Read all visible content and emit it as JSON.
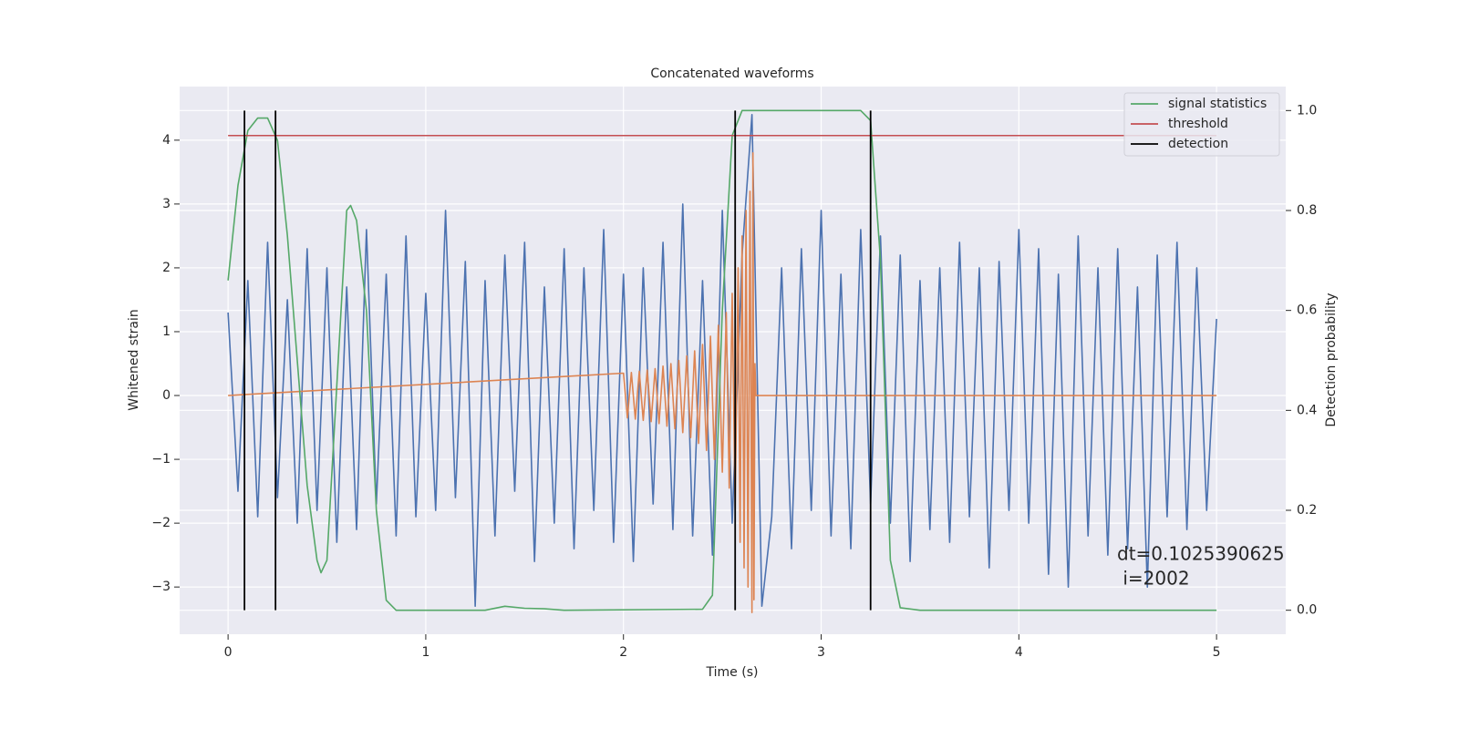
{
  "chart_data": {
    "type": "line",
    "title": "Concatenated waveforms",
    "xlabel": "Time (s)",
    "ylabel": "Whitened strain",
    "y2label": "Detection probability",
    "xlim": [
      -0.245,
      5.35
    ],
    "ylim": [
      -3.74,
      4.84
    ],
    "y2lim": [
      -0.048,
      1.048
    ],
    "xticks": [
      0,
      1,
      2,
      3,
      4,
      5
    ],
    "yticks": [
      {
        "value": -3,
        "label": "−3"
      },
      {
        "value": -2,
        "label": "−2"
      },
      {
        "value": -1,
        "label": "−1"
      },
      0,
      1,
      2,
      3,
      4
    ],
    "y2ticks": [
      {
        "value": 0,
        "label": "0.0"
      },
      {
        "value": 0.2,
        "label": "0.2"
      },
      {
        "value": 0.4,
        "label": "0.4"
      },
      {
        "value": 0.6,
        "label": "0.6"
      },
      {
        "value": 0.8,
        "label": "0.8"
      },
      {
        "value": 1,
        "label": "1.0"
      }
    ],
    "grid": true,
    "legend": "upper right",
    "annotation": [
      "dt=0.1025390625",
      " i=2002"
    ],
    "series": [
      {
        "color": "#4c72b0",
        "x": [
          0,
          0.05,
          0.1,
          0.15,
          0.2,
          0.25,
          0.3,
          0.35,
          0.4,
          0.45,
          0.5,
          0.55,
          0.6,
          0.65,
          0.7,
          0.75,
          0.8,
          0.85,
          0.9,
          0.95,
          1,
          1.05,
          1.1,
          1.15,
          1.2,
          1.25,
          1.3,
          1.35,
          1.4,
          1.45,
          1.5,
          1.55,
          1.6,
          1.65,
          1.7,
          1.75,
          1.8,
          1.85,
          1.9,
          1.95,
          2,
          2.05,
          2.1,
          2.15,
          2.2,
          2.25,
          2.3,
          2.35,
          2.4,
          2.45,
          2.5,
          2.55,
          2.6,
          2.65,
          2.7,
          2.75,
          2.8,
          2.85,
          2.9,
          2.95,
          3,
          3.05,
          3.1,
          3.15,
          3.2,
          3.25,
          3.3,
          3.35,
          3.4,
          3.45,
          3.5,
          3.55,
          3.6,
          3.65,
          3.7,
          3.75,
          3.8,
          3.85,
          3.9,
          3.95,
          4,
          4.05,
          4.1,
          4.15,
          4.2,
          4.25,
          4.3,
          4.35,
          4.4,
          4.45,
          4.5,
          4.55,
          4.6,
          4.65,
          4.7,
          4.75,
          4.8,
          4.85,
          4.9,
          4.95,
          5
        ],
        "values": [
          1.3,
          -1.5,
          1.8,
          -1.9,
          2.4,
          -1.6,
          1.5,
          -2.0,
          2.3,
          -1.8,
          2.0,
          -2.3,
          1.7,
          -2.1,
          2.6,
          -1.7,
          1.9,
          -2.2,
          2.5,
          -1.9,
          1.6,
          -1.8,
          2.9,
          -1.6,
          2.1,
          -3.3,
          1.8,
          -2.2,
          2.2,
          -1.5,
          2.4,
          -2.6,
          1.7,
          -2.0,
          2.3,
          -2.4,
          2.0,
          -1.8,
          2.6,
          -2.3,
          1.9,
          -2.6,
          2.0,
          -1.7,
          2.4,
          -2.1,
          3.0,
          -2.2,
          1.8,
          -2.5,
          2.9,
          -2.0,
          2.2,
          4.4,
          -3.3,
          -1.9,
          2.0,
          -2.4,
          2.3,
          -1.8,
          2.9,
          -2.2,
          1.9,
          -2.4,
          2.6,
          -1.7,
          2.5,
          -2.0,
          2.2,
          -2.6,
          1.8,
          -2.1,
          2.0,
          -2.3,
          2.4,
          -1.9,
          2.0,
          -2.7,
          2.1,
          -1.8,
          2.6,
          -2.0,
          2.3,
          -2.8,
          1.9,
          -3.0,
          2.5,
          -2.2,
          2.0,
          -2.5,
          2.3,
          -2.4,
          1.7,
          -3.0,
          2.2,
          -1.9,
          2.4,
          -2.1,
          2.0,
          -1.8,
          1.2
        ]
      },
      {
        "color": "#dd8452",
        "x": [
          0,
          2.0,
          2.02,
          2.04,
          2.06,
          2.08,
          2.1,
          2.12,
          2.14,
          2.16,
          2.18,
          2.2,
          2.22,
          2.24,
          2.26,
          2.28,
          2.3,
          2.32,
          2.34,
          2.36,
          2.38,
          2.4,
          2.42,
          2.44,
          2.46,
          2.48,
          2.5,
          2.52,
          2.535,
          2.55,
          2.565,
          2.58,
          2.59,
          2.6,
          2.61,
          2.62,
          2.63,
          2.64,
          2.65,
          2.655,
          2.66,
          2.665,
          2.67,
          5.0
        ],
        "values": [
          0,
          0.35,
          -0.35,
          0.36,
          -0.37,
          0.38,
          -0.39,
          0.4,
          -0.41,
          0.42,
          -0.44,
          0.46,
          -0.48,
          0.5,
          -0.52,
          0.55,
          -0.58,
          0.62,
          -0.66,
          0.7,
          -0.75,
          0.8,
          -0.86,
          0.93,
          -1.0,
          1.1,
          -1.2,
          1.3,
          -1.45,
          1.6,
          -1.8,
          2.0,
          -2.3,
          2.5,
          -2.7,
          2.9,
          -3.0,
          3.2,
          -3.4,
          3.8,
          -3.2,
          0.5,
          0,
          0
        ]
      },
      {
        "name": "signal statistics",
        "color": "#55a868",
        "axis": "y2",
        "x": [
          0,
          0.05,
          0.1,
          0.15,
          0.2,
          0.25,
          0.3,
          0.35,
          0.4,
          0.45,
          0.47,
          0.5,
          0.55,
          0.6,
          0.62,
          0.65,
          0.7,
          0.75,
          0.8,
          0.85,
          1.0,
          1.3,
          1.4,
          1.5,
          1.6,
          1.7,
          2.4,
          2.45,
          2.5,
          2.55,
          2.6,
          3.2,
          3.25,
          3.3,
          3.35,
          3.4,
          3.5,
          5.0
        ],
        "values": [
          0.66,
          0.85,
          0.96,
          0.985,
          0.985,
          0.94,
          0.75,
          0.5,
          0.25,
          0.1,
          0.075,
          0.1,
          0.45,
          0.8,
          0.81,
          0.78,
          0.6,
          0.2,
          0.02,
          0,
          0,
          0,
          0.008,
          0.004,
          0.003,
          0,
          0.002,
          0.03,
          0.6,
          0.95,
          1.0,
          1.0,
          0.98,
          0.7,
          0.1,
          0.005,
          0,
          0
        ]
      },
      {
        "name": "threshold",
        "color": "#c44e52",
        "axis": "y2",
        "x": [
          0,
          5
        ],
        "values": [
          0.95,
          0.95
        ]
      },
      {
        "name": "detection",
        "color": "#000000",
        "axis": "y2",
        "kind": "vlines",
        "x": [
          0.083,
          0.24,
          2.565,
          3.25
        ],
        "ymin": 0,
        "ymax": 1
      }
    ]
  }
}
